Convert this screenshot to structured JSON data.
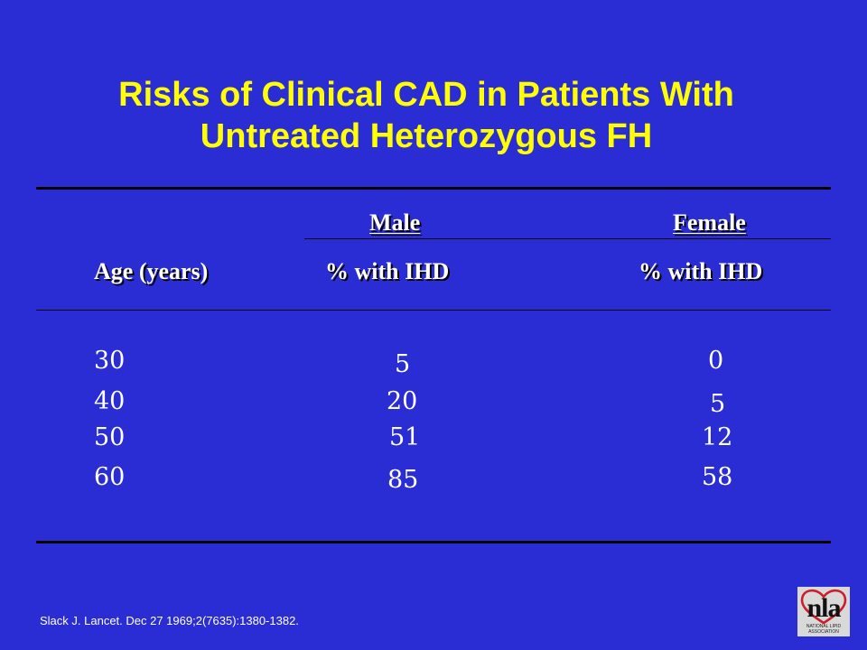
{
  "slide": {
    "title_line1": "Risks of Clinical CAD in Patients With",
    "title_line2": "Untreated Heterozygous FH",
    "colors": {
      "background": "#2b2dd4",
      "title": "#ffff00",
      "text": "#ffffff",
      "rules": "#000000"
    }
  },
  "table": {
    "group_headers": {
      "male": "Male",
      "female": "Female"
    },
    "column_headers": {
      "age": "Age (years)",
      "male": "% with IHD",
      "female": "% with IHD"
    },
    "rows": [
      {
        "age": "30",
        "male": "5",
        "female": "0"
      },
      {
        "age": "40",
        "male": "20",
        "female": "5"
      },
      {
        "age": "50",
        "male": "51",
        "female": "12"
      },
      {
        "age": "60",
        "male": "85",
        "female": "58"
      }
    ]
  },
  "citation": "Slack J. Lancet. Dec 27 1969;2(7635):1380-1382.",
  "logo": {
    "icon": "heart-icon",
    "mark_text": "nla",
    "org_line1": "NATIONAL LIPID",
    "org_line2": "ASSOCIATION"
  }
}
